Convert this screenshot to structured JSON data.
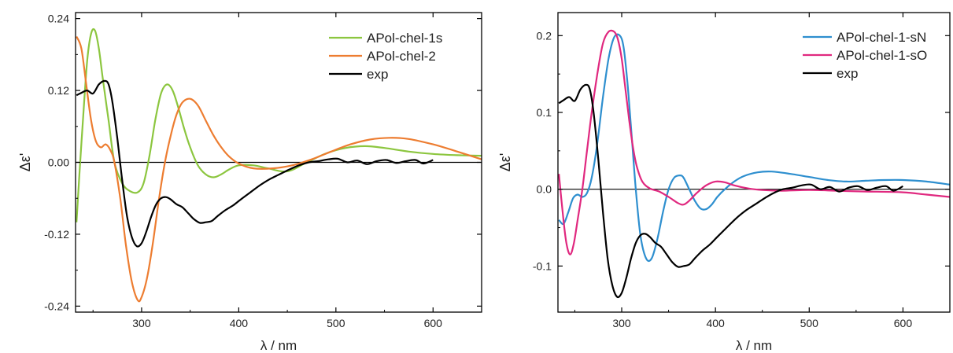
{
  "chart_data": [
    {
      "type": "line",
      "xlabel": "λ / nm",
      "ylabel": "Δε'",
      "xlim": [
        232,
        650
      ],
      "ylim": [
        -0.25,
        0.25
      ],
      "xticks": [
        300,
        400,
        500,
        600
      ],
      "yticks": [
        0.24,
        0.12,
        0.0,
        -0.12,
        -0.24
      ],
      "ytick_labels": [
        "0.24",
        "0.12",
        "0.00",
        "-0.12",
        "-0.24"
      ],
      "zero_line": true,
      "legend_position": "top-right",
      "series": [
        {
          "name": "APol-chel-1s",
          "color": "#8cc63f",
          "x": [
            233,
            236,
            240,
            244,
            248,
            252,
            256,
            260,
            266,
            272,
            280,
            288,
            296,
            302,
            308,
            314,
            320,
            326,
            332,
            338,
            344,
            350,
            358,
            366,
            374,
            382,
            390,
            400,
            415,
            430,
            450,
            470,
            490,
            510,
            530,
            550,
            575,
            600,
            625,
            650
          ],
          "y": [
            -0.1,
            -0.02,
            0.08,
            0.17,
            0.215,
            0.22,
            0.19,
            0.14,
            0.07,
            0.0,
            -0.035,
            -0.048,
            -0.05,
            -0.035,
            0.01,
            0.07,
            0.115,
            0.13,
            0.12,
            0.09,
            0.055,
            0.025,
            -0.005,
            -0.02,
            -0.025,
            -0.02,
            -0.012,
            -0.005,
            -0.005,
            -0.01,
            -0.015,
            0.0,
            0.015,
            0.024,
            0.027,
            0.024,
            0.018,
            0.014,
            0.012,
            0.011
          ]
        },
        {
          "name": "APol-chel-2",
          "color": "#ed7d31",
          "x": [
            233,
            238,
            243,
            248,
            253,
            258,
            263,
            268,
            272,
            278,
            284,
            290,
            296,
            300,
            306,
            312,
            318,
            324,
            330,
            336,
            342,
            350,
            358,
            366,
            374,
            382,
            390,
            400,
            415,
            435,
            455,
            475,
            495,
            515,
            535,
            555,
            575,
            600,
            625,
            650
          ],
          "y": [
            0.21,
            0.19,
            0.13,
            0.07,
            0.035,
            0.025,
            0.03,
            0.02,
            0.0,
            -0.06,
            -0.14,
            -0.2,
            -0.23,
            -0.225,
            -0.19,
            -0.13,
            -0.06,
            0.0,
            0.045,
            0.08,
            0.1,
            0.106,
            0.095,
            0.07,
            0.045,
            0.025,
            0.01,
            -0.002,
            -0.01,
            -0.01,
            -0.005,
            0.005,
            0.018,
            0.03,
            0.038,
            0.041,
            0.039,
            0.03,
            0.018,
            0.005
          ]
        },
        {
          "name": "exp",
          "color": "#000000",
          "x": [
            233,
            238,
            244,
            250,
            256,
            262,
            266,
            270,
            275,
            280,
            285,
            290,
            295,
            300,
            305,
            310,
            315,
            320,
            325,
            330,
            336,
            342,
            348,
            354,
            360,
            366,
            372,
            378,
            386,
            394,
            402,
            412,
            422,
            432,
            442,
            452,
            462,
            472,
            482,
            492,
            502,
            512,
            522,
            532,
            542,
            552,
            562,
            572,
            582,
            590,
            600
          ],
          "y": [
            0.112,
            0.116,
            0.12,
            0.115,
            0.13,
            0.136,
            0.13,
            0.1,
            0.04,
            -0.03,
            -0.09,
            -0.125,
            -0.14,
            -0.135,
            -0.115,
            -0.09,
            -0.07,
            -0.06,
            -0.058,
            -0.062,
            -0.07,
            -0.075,
            -0.085,
            -0.095,
            -0.101,
            -0.1,
            -0.098,
            -0.09,
            -0.08,
            -0.072,
            -0.062,
            -0.05,
            -0.038,
            -0.028,
            -0.02,
            -0.012,
            -0.005,
            0.0,
            0.002,
            0.005,
            0.006,
            0.0,
            0.003,
            -0.003,
            0.002,
            0.004,
            -0.001,
            0.002,
            0.004,
            -0.002,
            0.004
          ]
        }
      ]
    },
    {
      "type": "line",
      "xlabel": "λ / nm",
      "ylabel": "Δε'",
      "xlim": [
        232,
        650
      ],
      "ylim": [
        -0.16,
        0.23
      ],
      "xticks": [
        300,
        400,
        500,
        600
      ],
      "yticks": [
        0.2,
        0.1,
        0.0,
        -0.1
      ],
      "ytick_labels": [
        "0.2",
        "0.1",
        "0.0",
        "-0.1"
      ],
      "zero_line": true,
      "legend_position": "top-right",
      "series": [
        {
          "name": "APol-chel-1-sN",
          "color": "#2e8fcf",
          "x": [
            233,
            238,
            243,
            248,
            253,
            258,
            263,
            268,
            274,
            280,
            286,
            292,
            298,
            302,
            306,
            310,
            315,
            320,
            326,
            332,
            338,
            344,
            350,
            356,
            362,
            366,
            372,
            378,
            384,
            390,
            396,
            402,
            410,
            420,
            430,
            445,
            460,
            480,
            500,
            520,
            540,
            560,
            580,
            600,
            625,
            650
          ],
          "y": [
            -0.04,
            -0.045,
            -0.03,
            -0.012,
            -0.007,
            -0.01,
            -0.005,
            0.015,
            0.06,
            0.12,
            0.17,
            0.198,
            0.2,
            0.185,
            0.14,
            0.08,
            0.0,
            -0.06,
            -0.09,
            -0.09,
            -0.065,
            -0.03,
            0.0,
            0.015,
            0.018,
            0.015,
            0.0,
            -0.015,
            -0.025,
            -0.026,
            -0.02,
            -0.01,
            0.0,
            0.01,
            0.017,
            0.022,
            0.023,
            0.02,
            0.016,
            0.012,
            0.01,
            0.011,
            0.012,
            0.012,
            0.01,
            0.006
          ]
        },
        {
          "name": "APol-chel-1-sO",
          "color": "#e0287f",
          "x": [
            233,
            237,
            241,
            245,
            249,
            253,
            258,
            263,
            268,
            274,
            280,
            286,
            292,
            296,
            300,
            304,
            308,
            312,
            316,
            322,
            330,
            340,
            350,
            360,
            366,
            372,
            380,
            390,
            400,
            410,
            420,
            435,
            450,
            470,
            500,
            530,
            560,
            600,
            625,
            650
          ],
          "y": [
            0.02,
            -0.03,
            -0.07,
            -0.085,
            -0.07,
            -0.04,
            0.0,
            0.05,
            0.1,
            0.15,
            0.19,
            0.205,
            0.205,
            0.195,
            0.17,
            0.13,
            0.09,
            0.055,
            0.03,
            0.01,
            0.001,
            -0.003,
            -0.01,
            -0.018,
            -0.02,
            -0.015,
            -0.005,
            0.005,
            0.01,
            0.009,
            0.005,
            0.001,
            -0.001,
            -0.002,
            -0.001,
            -0.002,
            -0.003,
            -0.004,
            -0.007,
            -0.01
          ]
        },
        {
          "name": "exp",
          "color": "#000000",
          "x": [
            233,
            238,
            244,
            250,
            256,
            262,
            266,
            270,
            275,
            280,
            285,
            290,
            295,
            300,
            305,
            310,
            315,
            320,
            325,
            330,
            336,
            342,
            348,
            354,
            360,
            366,
            372,
            378,
            386,
            394,
            402,
            412,
            422,
            432,
            442,
            452,
            462,
            472,
            482,
            492,
            502,
            512,
            522,
            532,
            542,
            552,
            562,
            572,
            582,
            590,
            600
          ],
          "y": [
            0.112,
            0.116,
            0.12,
            0.115,
            0.13,
            0.136,
            0.13,
            0.1,
            0.04,
            -0.03,
            -0.09,
            -0.125,
            -0.14,
            -0.135,
            -0.115,
            -0.09,
            -0.07,
            -0.06,
            -0.058,
            -0.062,
            -0.07,
            -0.075,
            -0.085,
            -0.095,
            -0.101,
            -0.1,
            -0.098,
            -0.09,
            -0.08,
            -0.072,
            -0.062,
            -0.05,
            -0.038,
            -0.028,
            -0.02,
            -0.012,
            -0.005,
            0.0,
            0.002,
            0.005,
            0.006,
            0.0,
            0.003,
            -0.003,
            0.002,
            0.004,
            -0.001,
            0.002,
            0.004,
            -0.002,
            0.004
          ]
        }
      ]
    }
  ]
}
